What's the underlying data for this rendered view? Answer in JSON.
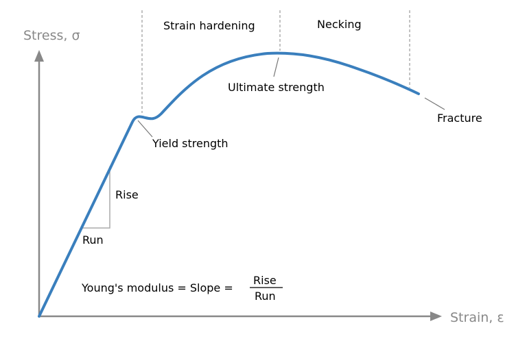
{
  "axes": {
    "y_label": "Stress, σ",
    "x_label": "Strain, ε"
  },
  "regions": [
    "Strain hardening",
    "Necking"
  ],
  "annotations": {
    "yield": "Yield strength",
    "ultimate": "Ultimate strength",
    "fracture": "Fracture",
    "rise": "Rise",
    "run": "Run"
  },
  "formula": {
    "text": "Young's modulus = Slope =",
    "numerator": "Rise",
    "denominator": "Run"
  },
  "colors": {
    "curve": "#3a7fbd",
    "axes": "#888888",
    "guides": "#999999"
  }
}
